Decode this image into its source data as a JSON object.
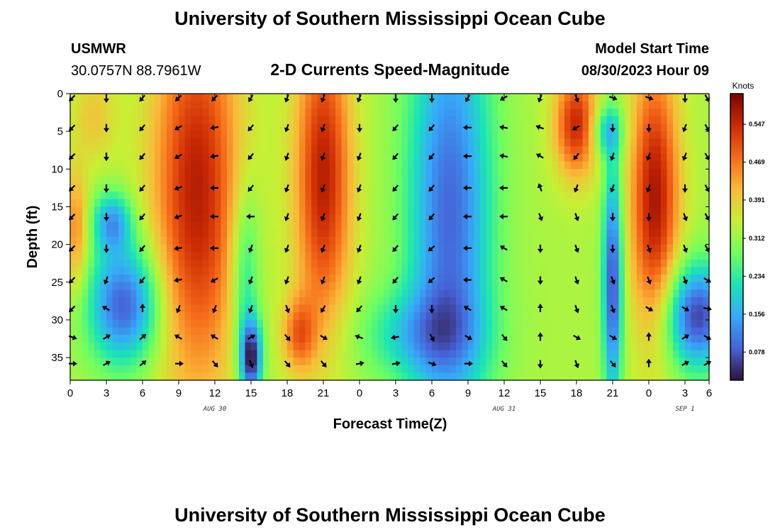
{
  "page": {
    "title": "University of Southern Mississippi Ocean Cube",
    "bottom_title": "University of Southern Mississippi Ocean Cube",
    "station": "USMWR",
    "coords": "30.0757N  88.7961W",
    "plot_title": "2-D Currents Speed-Magnitude",
    "model_start_label": "Model Start Time",
    "model_start_value": "08/30/2023 Hour 09"
  },
  "colors": {
    "stops": [
      "#30123b",
      "#4662d7",
      "#36aaf9",
      "#1ae4b6",
      "#72fe5e",
      "#c7ef34",
      "#faba39",
      "#f66b19",
      "#cb2a04",
      "#7a0403"
    ]
  },
  "chart_data": {
    "type": "heatmap",
    "title": "2-D Currents Speed-Magnitude",
    "xlabel": "Forecast Time(Z)",
    "ylabel": "Depth (ft)",
    "xlim": [
      0,
      53
    ],
    "ylim": [
      0,
      38
    ],
    "x_tick_values": [
      0,
      3,
      6,
      9,
      12,
      15,
      18,
      21,
      24,
      27,
      30,
      33,
      36,
      39,
      42,
      45,
      48,
      51,
      54
    ],
    "x_tick_labels": [
      "0",
      "3",
      "6",
      "9",
      "12",
      "15",
      "18",
      "21",
      "0",
      "3",
      "6",
      "9",
      "12",
      "15",
      "18",
      "21",
      "0",
      "3",
      "6"
    ],
    "y_tick_values": [
      0,
      5,
      10,
      15,
      20,
      25,
      30,
      35
    ],
    "y_tick_labels": [
      "0",
      "5",
      "10",
      "15",
      "20",
      "25",
      "30",
      "35"
    ],
    "date_labels": [
      {
        "x": 12,
        "label": "AUG 30"
      },
      {
        "x": 36,
        "label": "AUG 31"
      },
      {
        "x": 51,
        "label": "SEP 1"
      }
    ],
    "colorbar": {
      "unit": "Knots",
      "min": 0.02,
      "max": 0.61,
      "ticks": [
        0.078,
        0.156,
        0.234,
        0.312,
        0.391,
        0.469,
        0.547
      ],
      "tick_labels": [
        "0.078",
        "0.156",
        "0.234",
        "0.312",
        "0.391",
        "0.469",
        "0.547"
      ]
    },
    "vector_x_hours": [
      0,
      3,
      6,
      9,
      12,
      15,
      18,
      21,
      24,
      27,
      30,
      33,
      36,
      39,
      42,
      45,
      48,
      51,
      54
    ],
    "vector_depths_ft": [
      0,
      4.5,
      8.3,
      12.5,
      16.3,
      20.5,
      24.7,
      28.5,
      32.3,
      35.8
    ],
    "vectors_deg": [
      [
        225,
        180,
        220,
        225,
        225,
        210,
        200,
        200,
        200,
        180,
        180,
        210,
        240,
        200,
        160,
        110,
        110,
        180,
        150
      ],
      [
        225,
        180,
        220,
        240,
        260,
        220,
        200,
        200,
        180,
        220,
        220,
        270,
        280,
        290,
        240,
        180,
        180,
        200,
        150
      ],
      [
        225,
        180,
        220,
        240,
        260,
        220,
        200,
        200,
        200,
        220,
        220,
        270,
        280,
        300,
        220,
        200,
        200,
        200,
        150
      ],
      [
        225,
        180,
        220,
        250,
        270,
        220,
        200,
        200,
        200,
        220,
        220,
        270,
        270,
        340,
        200,
        200,
        200,
        180,
        150
      ],
      [
        225,
        180,
        220,
        250,
        270,
        270,
        200,
        200,
        200,
        220,
        220,
        270,
        270,
        160,
        160,
        180,
        180,
        160,
        150
      ],
      [
        225,
        180,
        220,
        260,
        270,
        200,
        200,
        200,
        200,
        220,
        230,
        270,
        300,
        180,
        160,
        180,
        160,
        160,
        150
      ],
      [
        225,
        200,
        220,
        260,
        240,
        200,
        200,
        200,
        200,
        220,
        230,
        270,
        300,
        180,
        160,
        160,
        160,
        160,
        120
      ],
      [
        225,
        300,
        0,
        200,
        200,
        200,
        160,
        210,
        220,
        180,
        180,
        300,
        300,
        0,
        160,
        160,
        120,
        120,
        100
      ],
      [
        110,
        60,
        50,
        300,
        300,
        60,
        140,
        120,
        290,
        260,
        150,
        120,
        140,
        0,
        120,
        120,
        0,
        60,
        120
      ],
      [
        90,
        60,
        50,
        90,
        140,
        160,
        140,
        140,
        80,
        80,
        110,
        90,
        140,
        180,
        160,
        140,
        0,
        60,
        60
      ]
    ]
  }
}
